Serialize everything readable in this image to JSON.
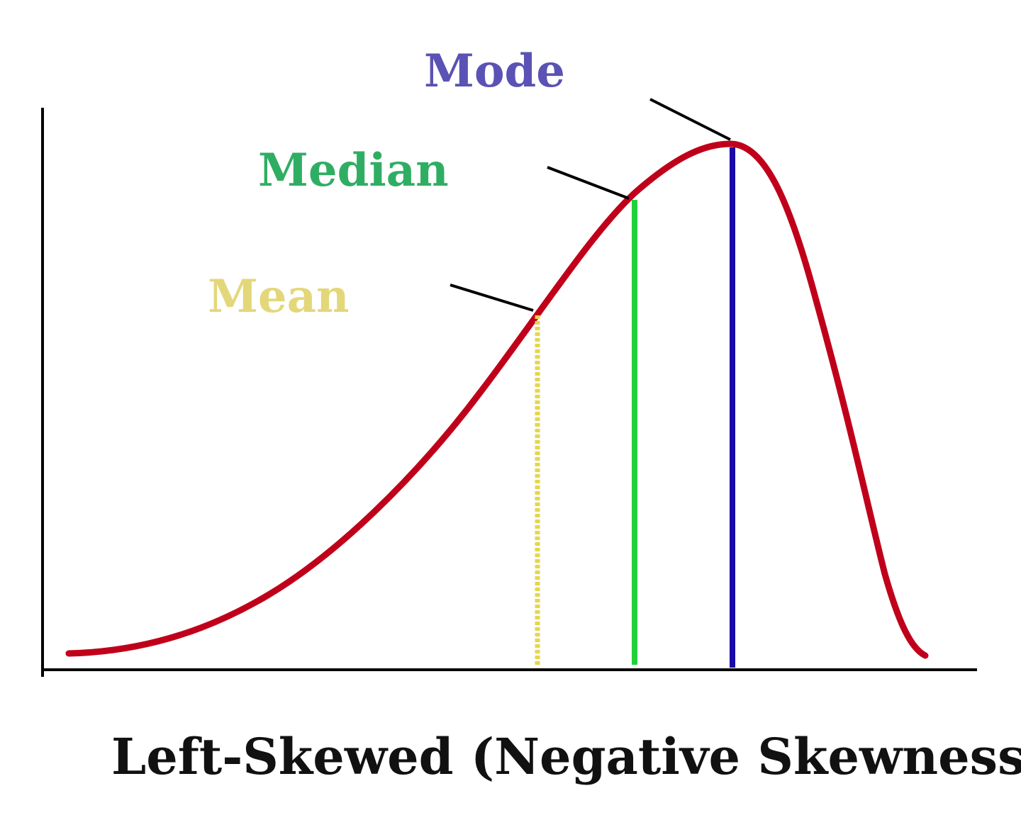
{
  "title": "Left-Skewed (Negative Skewness)",
  "labels": {
    "mode": "Mode",
    "median": "Median",
    "mean": "Mean"
  },
  "colors": {
    "curve": "#c0001a",
    "mode": "#1a0aa8",
    "median": "#1fd23c",
    "mean": "#e6d64a",
    "mode_label": "#5a52b4",
    "median_label": "#2fae63",
    "mean_label": "#e3d77a",
    "axis": "#000000",
    "leader": "#000000",
    "title": "#111111"
  }
}
